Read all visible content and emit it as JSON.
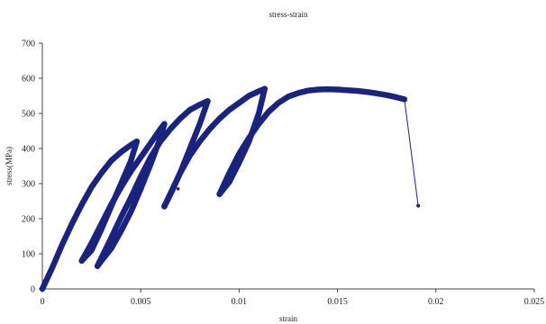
{
  "chart_data": {
    "type": "scatter",
    "title": "stress-strain",
    "xlabel": "strain",
    "ylabel": "stress(MPa)",
    "xlim": [
      0,
      0.025
    ],
    "ylim": [
      0,
      700
    ],
    "x_ticks": [
      0,
      0.005,
      0.01,
      0.015,
      0.02,
      0.025
    ],
    "x_tick_labels": [
      "0",
      "0.005",
      "0.01",
      "0.015",
      "0.02",
      "0.025"
    ],
    "y_ticks": [
      0,
      100,
      200,
      300,
      400,
      500,
      600,
      700
    ],
    "y_tick_labels": [
      "0",
      "100",
      "200",
      "300",
      "400",
      "500",
      "600",
      "700"
    ],
    "grid": false,
    "legend": "none",
    "marker_color": "#1a237e",
    "series": [
      {
        "segments": [
          {
            "x": [
              0,
              0.0005,
              0.001,
              0.0015,
              0.002,
              0.0025,
              0.003,
              0.0035,
              0.004,
              0.0045,
              0.0048
            ],
            "y": [
              0,
              60,
              125,
              185,
              240,
              290,
              330,
              365,
              390,
              410,
              420
            ]
          },
          {
            "x": [
              0.0048,
              0.0045,
              0.004,
              0.0035,
              0.003,
              0.0025,
              0.002
            ],
            "y": [
              420,
              365,
              300,
              235,
              170,
              110,
              80
            ]
          },
          {
            "x": [
              0.002,
              0.0025,
              0.003,
              0.0035,
              0.004,
              0.0045,
              0.005,
              0.0055,
              0.006,
              0.0062
            ],
            "y": [
              80,
              130,
              185,
              240,
              290,
              335,
              375,
              415,
              455,
              470
            ]
          },
          {
            "x": [
              0.0062,
              0.006,
              0.0055,
              0.005,
              0.0045,
              0.004,
              0.0035,
              0.003,
              0.0028
            ],
            "y": [
              470,
              430,
              355,
              285,
              220,
              165,
              115,
              80,
              65
            ]
          },
          {
            "x": [
              0.0028,
              0.0035,
              0.004,
              0.0045,
              0.005,
              0.0055,
              0.006,
              0.0065,
              0.007,
              0.0075,
              0.008,
              0.0084
            ],
            "y": [
              65,
              145,
              205,
              260,
              320,
              375,
              420,
              455,
              485,
              510,
              525,
              535
            ]
          },
          {
            "x": [
              0.0084,
              0.008,
              0.0075,
              0.007,
              0.0066,
              0.0062
            ],
            "y": [
              535,
              470,
              400,
              330,
              280,
              235
            ]
          },
          {
            "x": [
              0.0062,
              0.007,
              0.0075,
              0.008,
              0.0085,
              0.009,
              0.0095,
              0.01,
              0.0105,
              0.011,
              0.0113
            ],
            "y": [
              235,
              330,
              380,
              420,
              455,
              485,
              510,
              530,
              550,
              563,
              570
            ]
          },
          {
            "x": [
              0.0113,
              0.011,
              0.0105,
              0.01,
              0.0095,
              0.009
            ],
            "y": [
              570,
              500,
              420,
              360,
              305,
              270
            ]
          },
          {
            "x": [
              0.009,
              0.0095,
              0.01,
              0.0105,
              0.011,
              0.0115,
              0.012,
              0.0125,
              0.013,
              0.0135,
              0.014,
              0.0145,
              0.015,
              0.0155,
              0.016,
              0.0165,
              0.017,
              0.0175,
              0.018,
              0.0184
            ],
            "y": [
              270,
              330,
              385,
              430,
              470,
              505,
              530,
              548,
              558,
              565,
              568,
              569,
              568,
              566,
              564,
              561,
              557,
              552,
              546,
              540
            ]
          },
          {
            "x": [
              0.0184,
              0.0191
            ],
            "y": [
              540,
              237
            ]
          }
        ],
        "outliers": {
          "x": [
            0.0069
          ],
          "y": [
            285
          ]
        }
      }
    ]
  }
}
